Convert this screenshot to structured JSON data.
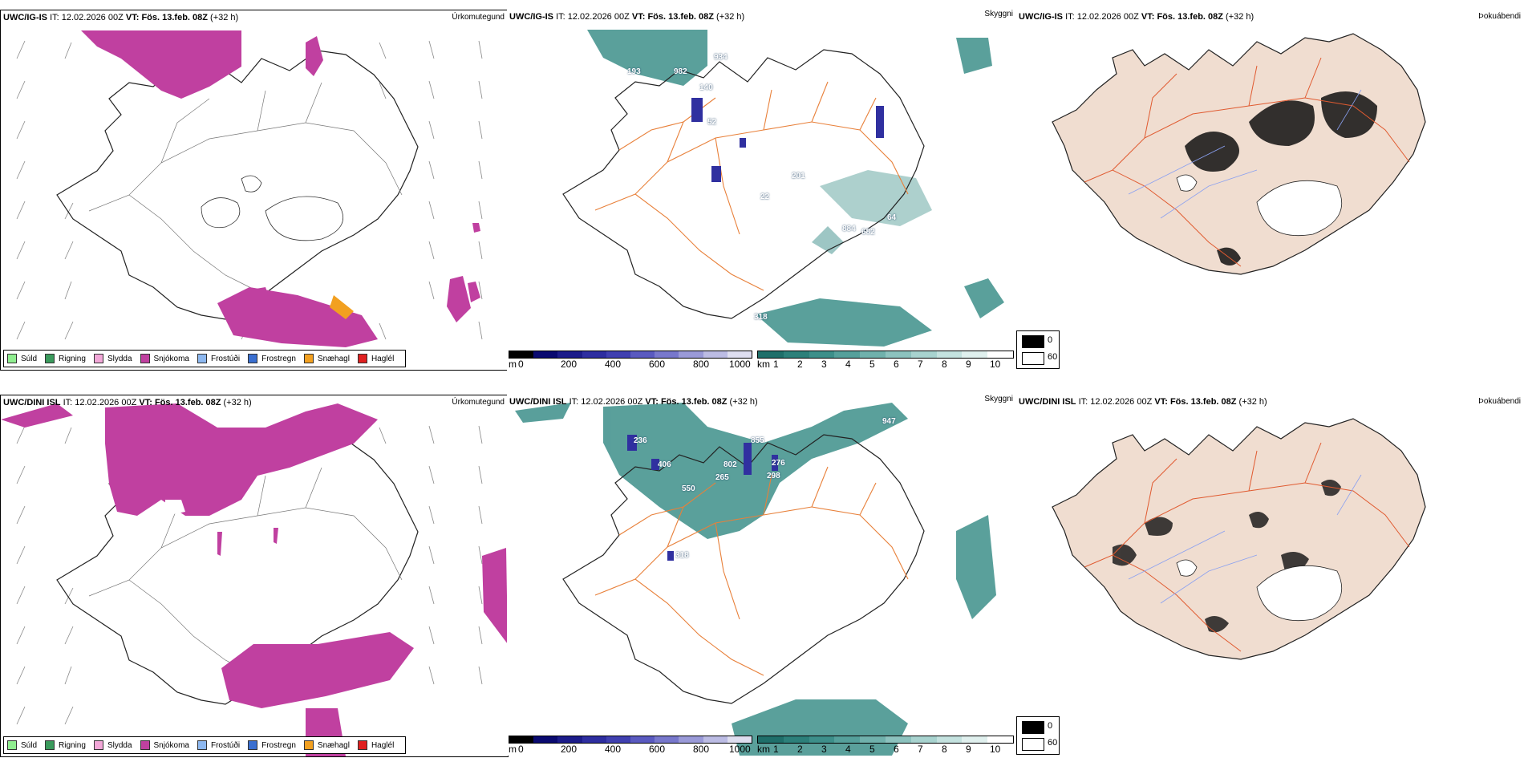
{
  "rows": [
    {
      "precip": {
        "model": "UWC/IG-IS",
        "it_label": "IT:",
        "it": "12.02.2026 00Z",
        "vt_label": "VT:",
        "vt": "Fös. 13.feb. 08Z",
        "lead": "(+32 h)",
        "title": "Úrkomutegund"
      },
      "visibility": {
        "model": "UWC/IG-IS",
        "it_label": "IT:",
        "it": "12.02.2026 00Z",
        "vt_label": "VT:",
        "vt": "Fös. 13.feb. 08Z",
        "lead": "(+32 h)",
        "title": "Skyggni",
        "labels": [
          "193",
          "982",
          "934",
          "140",
          "52",
          "201",
          "22",
          "884",
          "682",
          "318",
          "64"
        ]
      },
      "fog": {
        "model": "UWC/IG-IS",
        "it_label": "IT:",
        "it": "12.02.2026 00Z",
        "vt_label": "VT:",
        "vt": "Fös. 13.feb. 08Z",
        "lead": "(+32 h)",
        "title": "Þokuábendi"
      }
    },
    {
      "precip": {
        "model": "UWC/DINI ISL",
        "it_label": "IT:",
        "it": "12.02.2026 00Z",
        "vt_label": "VT:",
        "vt": "Fös. 13.feb. 08Z",
        "lead": "(+32 h)",
        "title": "Úrkomutegund"
      },
      "visibility": {
        "model": "UWC/DINI ISL",
        "it_label": "IT:",
        "it": "12.02.2026 00Z",
        "vt_label": "VT:",
        "vt": "Fös. 13.feb. 08Z",
        "lead": "(+32 h)",
        "title": "Skyggni",
        "labels": [
          "236",
          "406",
          "550",
          "265",
          "802",
          "855",
          "276",
          "298",
          "947",
          "318"
        ]
      },
      "fog": {
        "model": "UWC/DINI ISL",
        "it_label": "IT:",
        "it": "12.02.2026 00Z",
        "vt_label": "VT:",
        "vt": "Fös. 13.feb. 08Z",
        "lead": "(+32 h)",
        "title": "Þokuábendi"
      }
    }
  ],
  "precip_legend": [
    {
      "label": "Súld",
      "color": "#90ee90"
    },
    {
      "label": "Rigning",
      "color": "#3a9a5c"
    },
    {
      "label": "Slydda",
      "color": "#f2a7d8"
    },
    {
      "label": "Snjókoma",
      "color": "#c040a0"
    },
    {
      "label": "Frostúði",
      "color": "#8db8f0"
    },
    {
      "label": "Frostregn",
      "color": "#3a6fd0"
    },
    {
      "label": "Snæhagl",
      "color": "#f2a020"
    },
    {
      "label": "Haglél",
      "color": "#e02020"
    }
  ],
  "ceiling_scale": {
    "unit": "m",
    "ticks": [
      "0",
      "200",
      "400",
      "600",
      "800",
      "1000"
    ]
  },
  "vis_scale": {
    "unit": "km",
    "ticks": [
      "1",
      "2",
      "3",
      "4",
      "5",
      "6",
      "7",
      "8",
      "9",
      "10"
    ]
  },
  "coverage": {
    "black": "0",
    "white": "60"
  },
  "colors": {
    "snow": "#c040a0",
    "land": "#f0ddd0",
    "roads": "#e8803a",
    "teal": "#3d8f8a",
    "lowcloud": "#3030a0"
  }
}
